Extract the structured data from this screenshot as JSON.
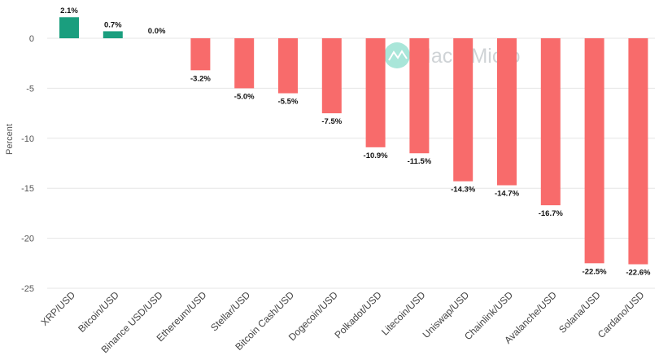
{
  "watermark": "MacroMicro",
  "colors": {
    "positive": "#1a9e7e",
    "negative": "#f86b6b",
    "watermark_logo": "#a9e6d9"
  },
  "chart_data": {
    "type": "bar",
    "ylabel": "Percent",
    "ylim": [
      -25,
      2.5
    ],
    "yticks": [
      0,
      -5,
      -10,
      -15,
      -20,
      -25
    ],
    "grid": true,
    "categories": [
      "XRP/USD",
      "Bitcoin/USD",
      "Binance USD/USD",
      "Ethereum/USD",
      "Stellar/USD",
      "Bitcoin Cash/USD",
      "Dogecoin/USD",
      "Polkadot/USD",
      "Litecoin/USD",
      "Uniswap/USD",
      "Chainlink/USD",
      "Avalanche/USD",
      "Solana/USD",
      "Cardano/USD"
    ],
    "values": [
      2.1,
      0.7,
      0.0,
      -3.2,
      -5.0,
      -5.5,
      -7.5,
      -10.9,
      -11.5,
      -14.3,
      -14.7,
      -16.7,
      -22.5,
      -22.6
    ],
    "data_labels": [
      "2.1%",
      "0.7%",
      "0.0%",
      "-3.2%",
      "-5.0%",
      "-5.5%",
      "-7.5%",
      "-10.9%",
      "-11.5%",
      "-14.3%",
      "-14.7%",
      "-16.7%",
      "-22.5%",
      "-22.6%"
    ]
  }
}
